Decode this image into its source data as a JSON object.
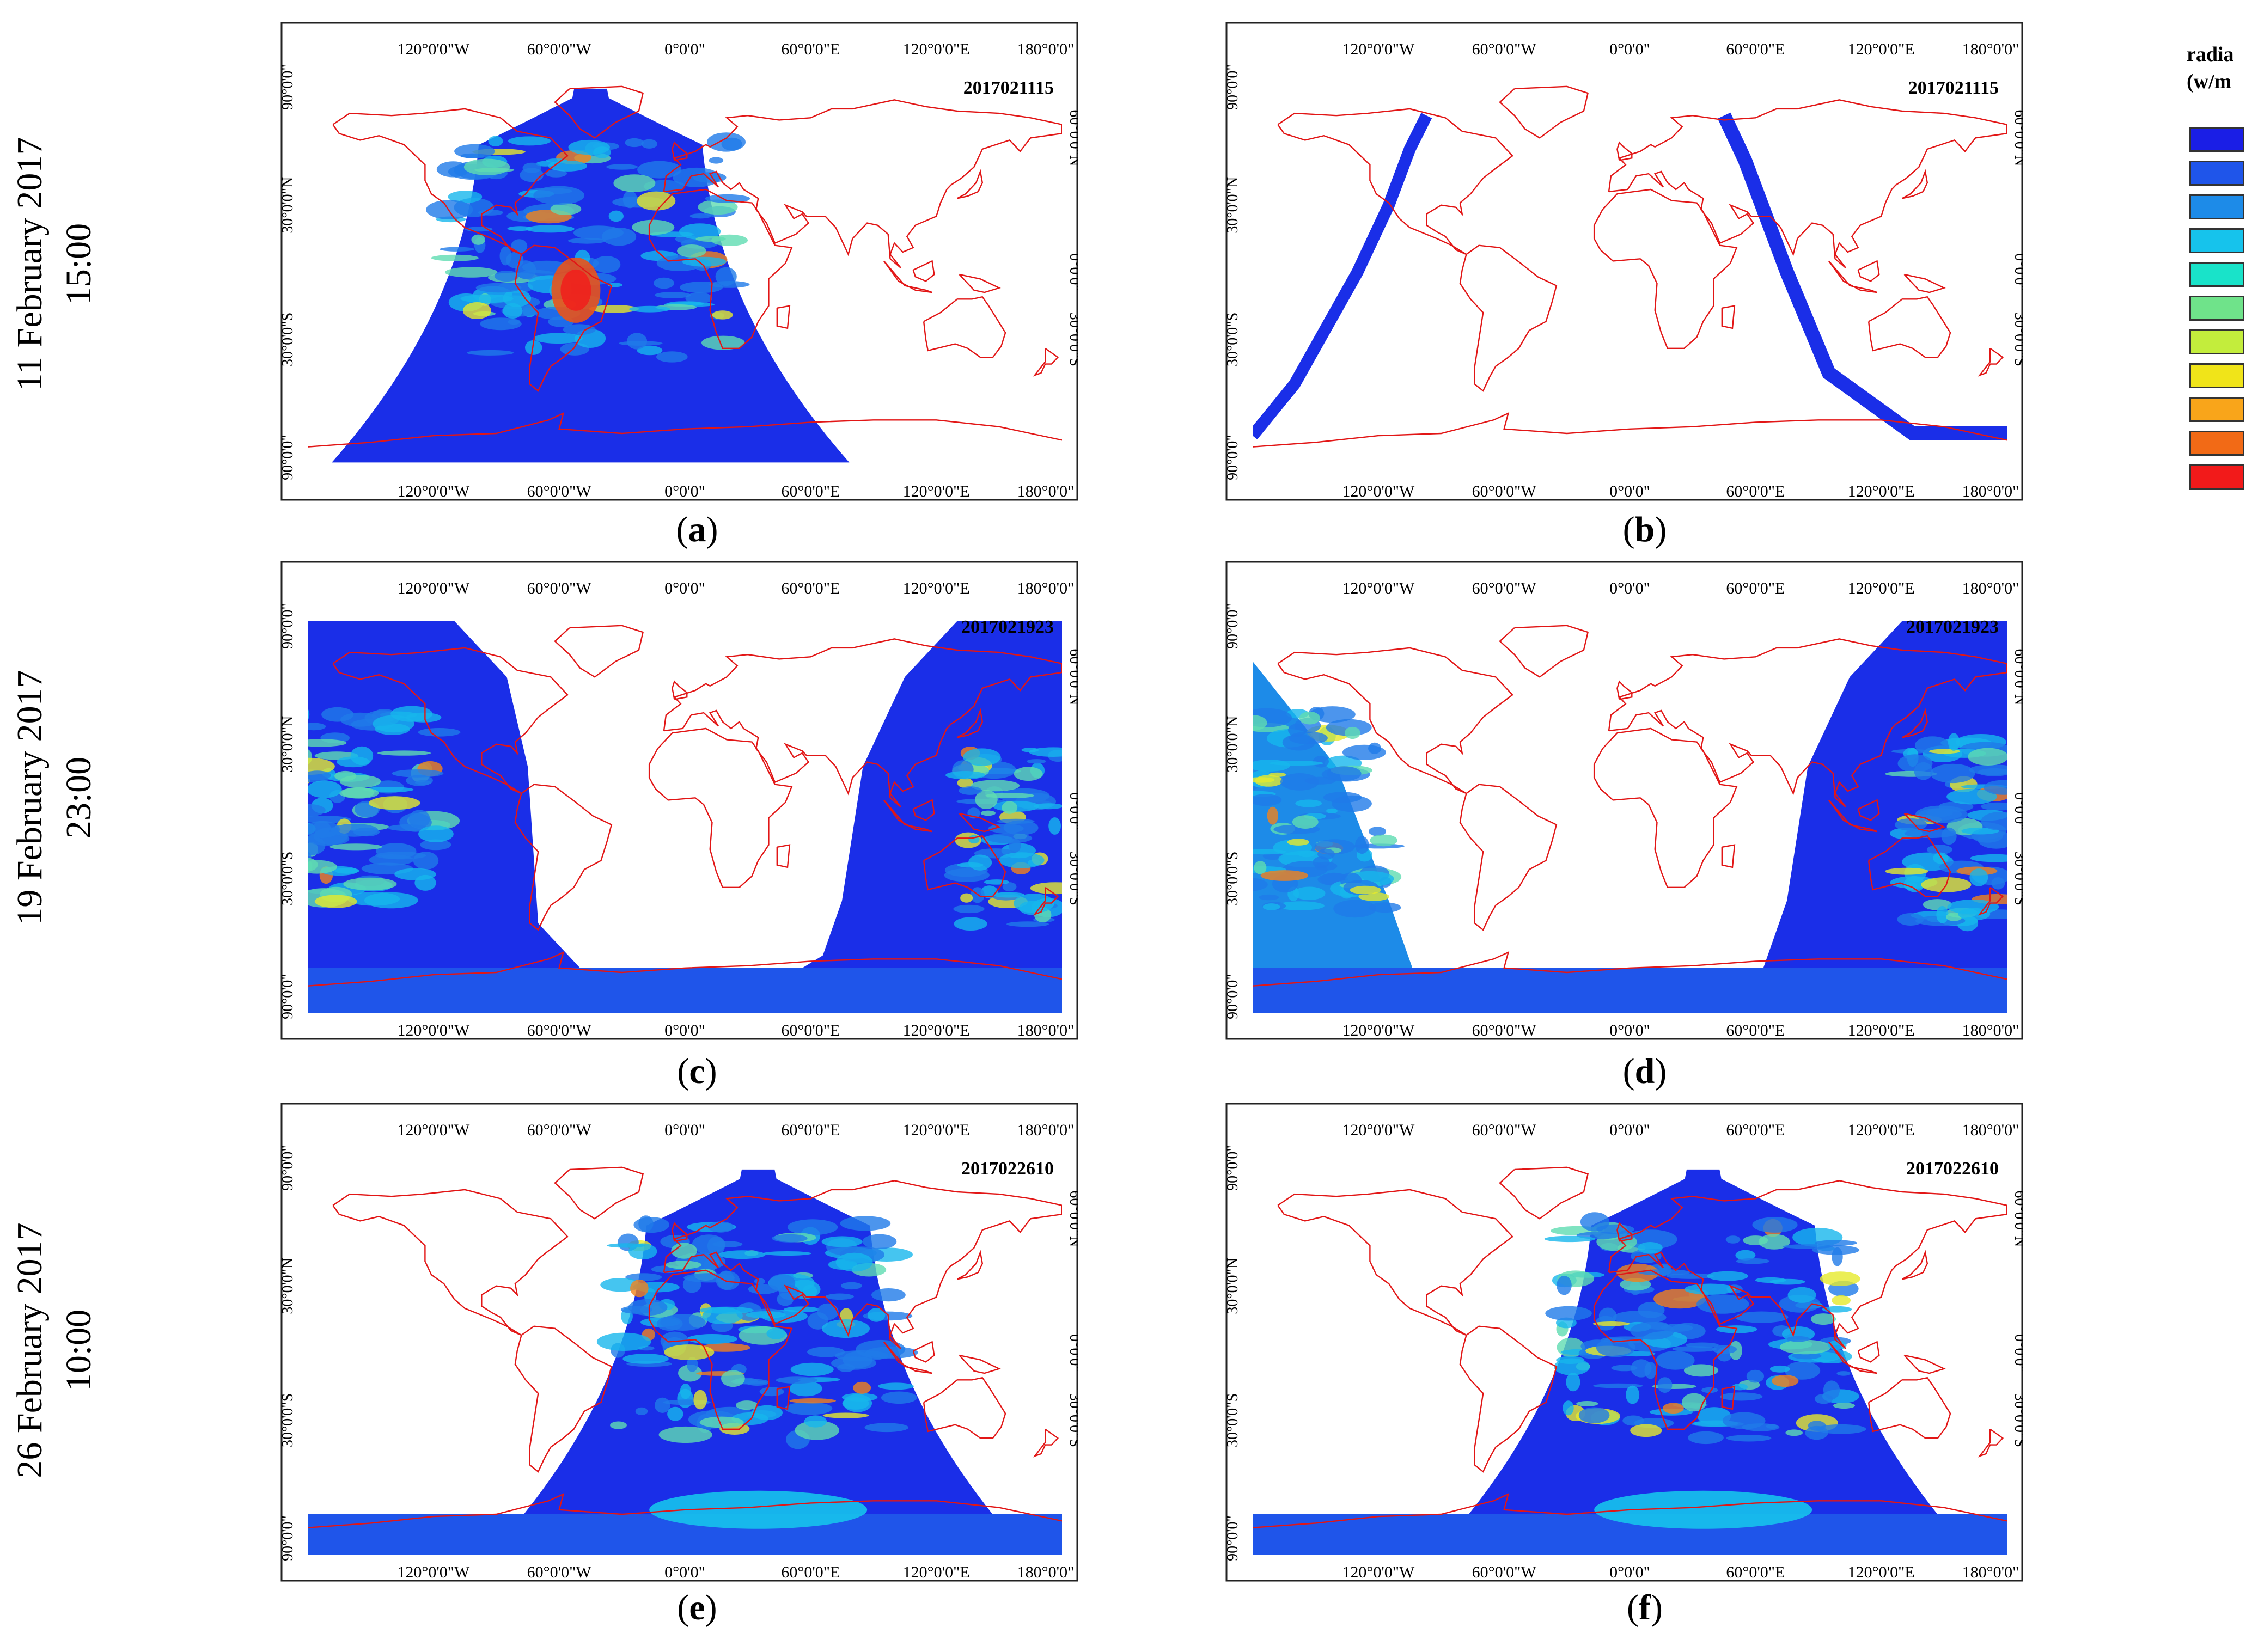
{
  "legend": {
    "title_line1": "radia",
    "title_line2": "(w/m",
    "colors": [
      "#1a1ee6",
      "#1f55ea",
      "#1d8be8",
      "#16c3ec",
      "#19e3c9",
      "#6fe38a",
      "#c3ed3c",
      "#f0e419",
      "#f9a51a",
      "#f26a16",
      "#f21a1a"
    ]
  },
  "rows": [
    {
      "date": "11 February 2017",
      "time": "15:00"
    },
    {
      "date": "19 February 2017",
      "time": "23:00"
    },
    {
      "date": "26 February 2017",
      "time": "10:00"
    }
  ],
  "axis": {
    "top_ticks": [
      "120°0'0\"W",
      "60°0'0\"W",
      "0°0'0\"",
      "60°0'0\"E",
      "120°0'0\"E",
      "180°0'0\""
    ],
    "left_ticks": [
      "90°0'0\"",
      "30°0'0\"N",
      "30°0'0\"S",
      "90°0'0\""
    ],
    "right_ticks": [
      "60°0'0\"N",
      "0°0'0\"",
      "30°0'0\"S"
    ]
  },
  "panels": [
    {
      "letter": "a",
      "timestamp": "2017021115"
    },
    {
      "letter": "b",
      "timestamp": "2017021115"
    },
    {
      "letter": "c",
      "timestamp": "2017021923"
    },
    {
      "letter": "d",
      "timestamp": "2017021923"
    },
    {
      "letter": "e",
      "timestamp": "2017022610"
    },
    {
      "letter": "f",
      "timestamp": "2017022610"
    }
  ]
}
